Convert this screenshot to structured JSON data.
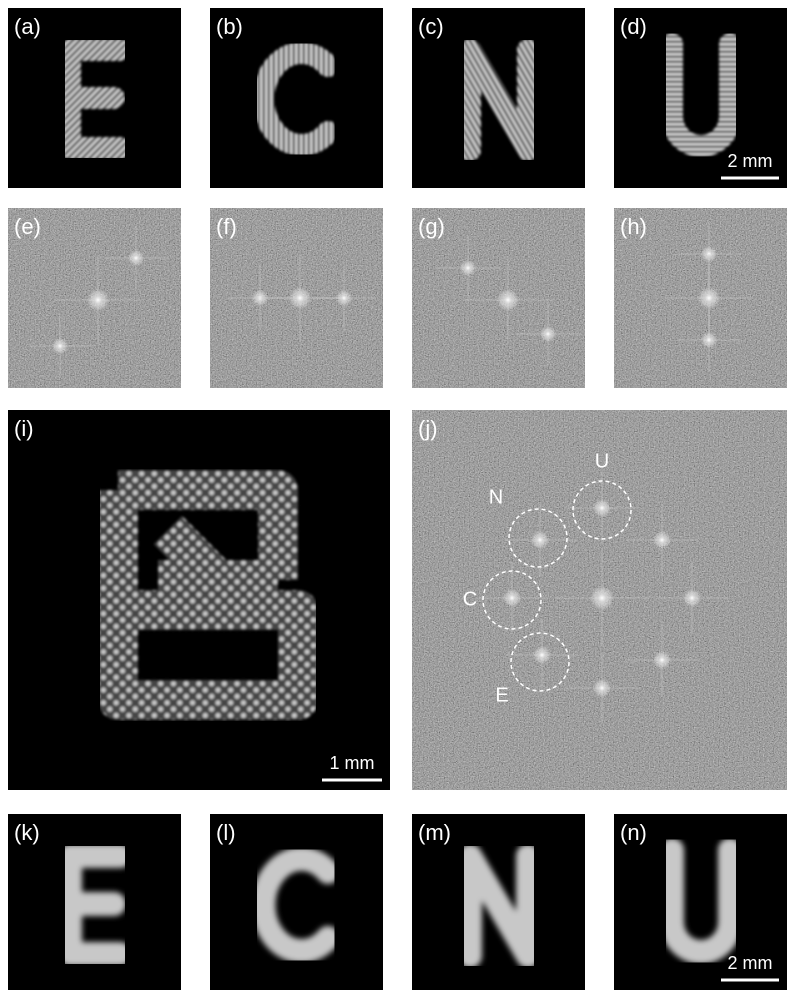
{
  "panels": [
    {
      "label": "(a)"
    },
    {
      "label": "(b)"
    },
    {
      "label": "(c)"
    },
    {
      "label": "(d)",
      "scale_bar": "2 mm"
    },
    {
      "label": "(e)"
    },
    {
      "label": "(f)"
    },
    {
      "label": "(g)"
    },
    {
      "label": "(h)"
    },
    {
      "label": "(i)",
      "scale_bar": "1 mm"
    },
    {
      "label": "(j)",
      "markers": [
        "U",
        "N",
        "C",
        "E"
      ]
    },
    {
      "label": "(k)"
    },
    {
      "label": "(l)"
    },
    {
      "label": "(m)"
    },
    {
      "label": "(n)",
      "scale_bar": "2 mm"
    }
  ]
}
